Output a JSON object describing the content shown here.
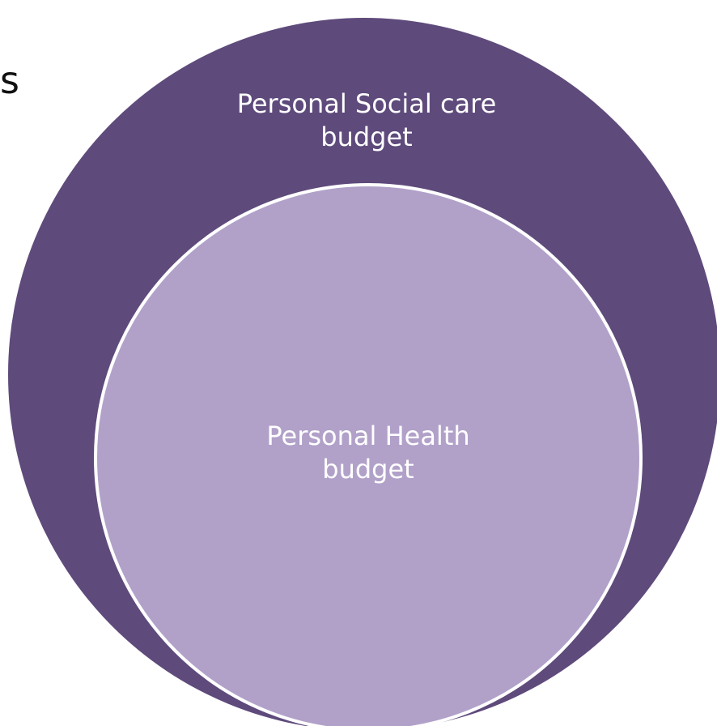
{
  "slide": {
    "edge_text": "s"
  },
  "diagram": {
    "outer_circle": {
      "label_line1": "Personal Social care",
      "label_line2": "budget",
      "fill": "#5e4a7b",
      "text_color": "#ffffff"
    },
    "inner_circle": {
      "label_line1": "Personal Health",
      "label_line2": "budget",
      "fill": "#b1a1c9",
      "stroke": "#ffffff",
      "text_color": "#ffffff"
    }
  }
}
